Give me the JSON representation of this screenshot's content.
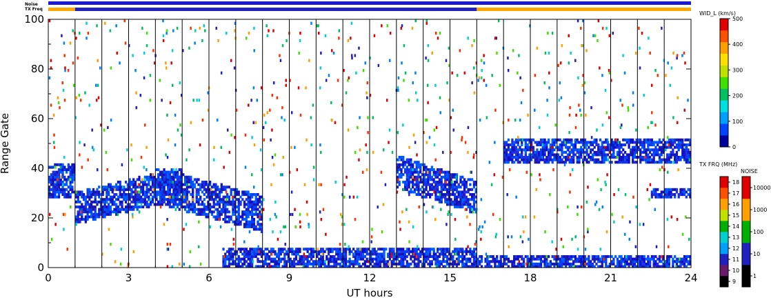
{
  "chart_data": {
    "type": "heatmap",
    "xlabel": "UT hours",
    "ylabel": "Range Gate",
    "xlim": [
      0,
      24
    ],
    "ylim": [
      0,
      100
    ],
    "x_ticks": [
      "0",
      "3",
      "6",
      "9",
      "12",
      "15",
      "18",
      "21",
      "24"
    ],
    "y_ticks": [
      "0",
      "20",
      "40",
      "60",
      "80",
      "100"
    ],
    "top_bars": {
      "noise_label": "Noise",
      "txfreq_label": "TX Freq",
      "noise_color": "#1a1ad6",
      "txfreq_segments": [
        {
          "from": 0,
          "to": 1,
          "color": "#ffa500"
        },
        {
          "from": 1,
          "to": 16,
          "color": "#2020c0"
        },
        {
          "from": 16,
          "to": 24,
          "color": "#ffa500"
        }
      ]
    },
    "scan_boundaries_hours": [
      1,
      2,
      3,
      4,
      5,
      6,
      7,
      8,
      9,
      10,
      11,
      12,
      13,
      14,
      15,
      16,
      17,
      18,
      19,
      20,
      21,
      22,
      23
    ],
    "echo_bands": [
      {
        "x0": 0.0,
        "x1": 1.0,
        "y0": 28,
        "y1": 42
      },
      {
        "x0": 1.0,
        "x1": 5.0,
        "y0": 18,
        "y1": 40,
        "trend": "rising"
      },
      {
        "x0": 4.0,
        "x1": 8.0,
        "y0": 15,
        "y1": 40,
        "trend": "falling"
      },
      {
        "x0": 6.5,
        "x1": 16.0,
        "y0": 0,
        "y1": 8
      },
      {
        "x0": 13.0,
        "x1": 16.0,
        "y0": 22,
        "y1": 45,
        "trend": "falling"
      },
      {
        "x0": 16.0,
        "x1": 24.0,
        "y0": 0,
        "y1": 5
      },
      {
        "x0": 17.0,
        "x1": 24.0,
        "y0": 42,
        "y1": 52
      },
      {
        "x0": 22.5,
        "x1": 24.0,
        "y0": 28,
        "y1": 32
      }
    ],
    "colorbars": [
      {
        "title": "WID_L (km/s)",
        "ticks": [
          "0",
          "100",
          "200",
          "300",
          "400",
          "500"
        ],
        "colors": [
          "#0000a0",
          "#0044ff",
          "#00a0ff",
          "#00e0e0",
          "#00c060",
          "#40e000",
          "#c0e000",
          "#ffe000",
          "#ffa000",
          "#ff5000",
          "#e00000"
        ]
      },
      {
        "title": "TX FRQ (MHz)",
        "ticks": [
          "9",
          "10",
          "11",
          "12",
          "13",
          "14",
          "15",
          "16",
          "17",
          "18"
        ],
        "colors": [
          "#000000",
          "#6a1a6a",
          "#2020c0",
          "#00a0ff",
          "#00d0d0",
          "#00b000",
          "#c0e000",
          "#ffa000",
          "#ff5000",
          "#e00000"
        ]
      },
      {
        "title": "NOISE",
        "ticks": [
          "1",
          "10",
          "100",
          "1000",
          "10000"
        ],
        "colors": [
          "#000000",
          "#2020c0",
          "#00b000",
          "#ffa000",
          "#e00000"
        ]
      }
    ]
  }
}
